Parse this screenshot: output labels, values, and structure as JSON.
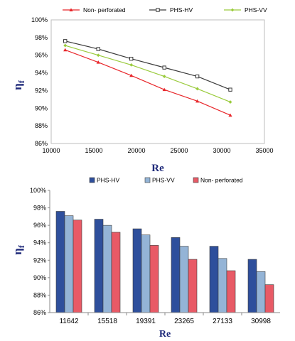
{
  "chart_data": [
    {
      "type": "line",
      "xlabel": "Re",
      "ylabel": "η",
      "ylabel_sub": "f",
      "xlim": [
        10000,
        35000
      ],
      "xticks": [
        10000,
        15000,
        20000,
        25000,
        30000,
        35000
      ],
      "xtick_labels": [
        "10000",
        "15000",
        "20000",
        "25000",
        "30000",
        "35000"
      ],
      "ylim": [
        86,
        100
      ],
      "yticks": [
        86,
        88,
        90,
        92,
        94,
        96,
        98,
        100
      ],
      "ytick_labels": [
        "86%",
        "88%",
        "90%",
        "92%",
        "94%",
        "96%",
        "98%",
        "100%"
      ],
      "legend_position": "top",
      "series": [
        {
          "name": "Non- perforated",
          "color": "#e8262a",
          "marker": "triangle",
          "x": [
            11642,
            15518,
            19391,
            23265,
            27133,
            30998
          ],
          "y": [
            96.6,
            95.2,
            93.7,
            92.1,
            90.8,
            89.2
          ]
        },
        {
          "name": "PHS-HV",
          "color": "#3a3a3a",
          "marker": "square",
          "x": [
            11642,
            15518,
            19391,
            23265,
            27133,
            30998
          ],
          "y": [
            97.6,
            96.7,
            95.6,
            94.6,
            93.6,
            92.1
          ]
        },
        {
          "name": "PHS-VV",
          "color": "#9acb3c",
          "marker": "diamond",
          "x": [
            11642,
            15518,
            19391,
            23265,
            27133,
            30998
          ],
          "y": [
            97.1,
            96.0,
            94.9,
            93.6,
            92.2,
            90.7
          ]
        }
      ]
    },
    {
      "type": "bar",
      "xlabel": "Re",
      "ylabel": "η",
      "ylabel_sub": "f",
      "categories": [
        "11642",
        "15518",
        "19391",
        "23265",
        "27133",
        "30998"
      ],
      "ylim": [
        86,
        100
      ],
      "yticks": [
        86,
        88,
        90,
        92,
        94,
        96,
        98,
        100
      ],
      "ytick_labels": [
        "86%",
        "88%",
        "90%",
        "92%",
        "94%",
        "96%",
        "98%",
        "100%"
      ],
      "legend_position": "top",
      "series": [
        {
          "name": "PHS-HV",
          "color": "#2e4f9c",
          "values": [
            97.6,
            96.7,
            95.6,
            94.6,
            93.6,
            92.1
          ]
        },
        {
          "name": "PHS-VV",
          "color": "#94b4d6",
          "values": [
            97.1,
            96.0,
            94.9,
            93.6,
            92.2,
            90.7
          ]
        },
        {
          "name": "Non- perforated",
          "color": "#e85a66",
          "values": [
            96.6,
            95.2,
            93.7,
            92.1,
            90.8,
            89.2
          ]
        }
      ]
    }
  ]
}
